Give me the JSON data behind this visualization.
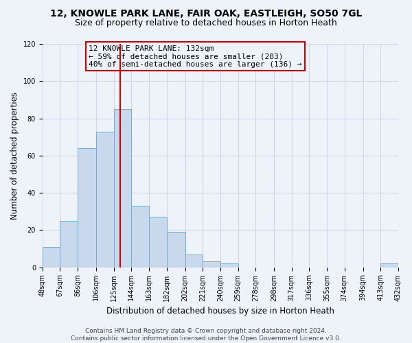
{
  "title": "12, KNOWLE PARK LANE, FAIR OAK, EASTLEIGH, SO50 7GL",
  "subtitle": "Size of property relative to detached houses in Horton Heath",
  "xlabel": "Distribution of detached houses by size in Horton Heath",
  "ylabel": "Number of detached properties",
  "bin_edges": [
    48,
    67,
    86,
    106,
    125,
    144,
    163,
    182,
    202,
    221,
    240,
    259,
    278,
    298,
    317,
    336,
    355,
    374,
    394,
    413,
    432
  ],
  "bar_heights": [
    11,
    25,
    64,
    73,
    85,
    33,
    27,
    19,
    7,
    3,
    2,
    0,
    0,
    0,
    0,
    0,
    0,
    0,
    0,
    2
  ],
  "bar_color": "#c8d8ed",
  "bar_edge_color": "#7aaad0",
  "vline_x": 132,
  "vline_color": "#cc0000",
  "annotation_line1": "12 KNOWLE PARK LANE: 132sqm",
  "annotation_line2": "← 59% of detached houses are smaller (203)",
  "annotation_line3": "40% of semi-detached houses are larger (136) →",
  "ylim": [
    0,
    120
  ],
  "yticks": [
    0,
    20,
    40,
    60,
    80,
    100,
    120
  ],
  "tick_labels": [
    "48sqm",
    "67sqm",
    "86sqm",
    "106sqm",
    "125sqm",
    "144sqm",
    "163sqm",
    "182sqm",
    "202sqm",
    "221sqm",
    "240sqm",
    "259sqm",
    "278sqm",
    "298sqm",
    "317sqm",
    "336sqm",
    "355sqm",
    "374sqm",
    "394sqm",
    "413sqm",
    "432sqm"
  ],
  "footnote": "Contains HM Land Registry data © Crown copyright and database right 2024.\nContains public sector information licensed under the Open Government Licence v3.0.",
  "bg_color": "#eef2f9",
  "grid_color": "#d0d8e8",
  "title_fontsize": 10,
  "subtitle_fontsize": 9,
  "axis_label_fontsize": 8.5,
  "tick_fontsize": 7,
  "annotation_fontsize": 8,
  "footnote_fontsize": 6.5
}
